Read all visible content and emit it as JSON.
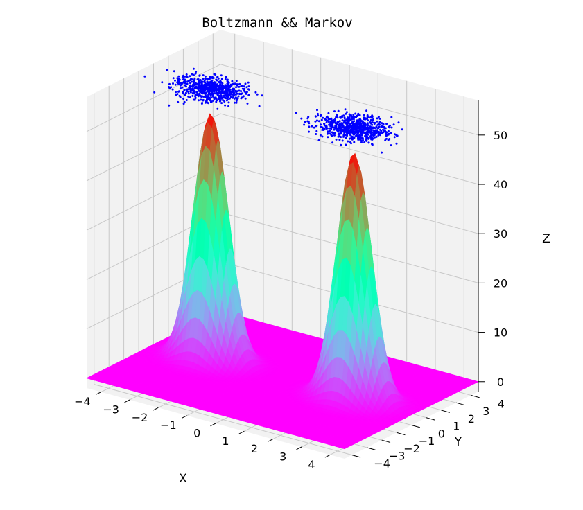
{
  "chart_data": {
    "type": "surface3d",
    "title": "Boltzmann && Markov",
    "xlabel": "X",
    "ylabel": "Y",
    "zlabel": "Z",
    "xlim": [
      -4.5,
      4.5
    ],
    "ylim": [
      -4.5,
      4.5
    ],
    "zlim": [
      -2,
      57
    ],
    "xticks": [
      -4,
      -3,
      -2,
      -1,
      0,
      1,
      2,
      3,
      4
    ],
    "yticks": [
      -4,
      -3,
      -2,
      -1,
      0,
      1,
      2,
      3,
      4
    ],
    "zticks": [
      0,
      10,
      20,
      30,
      40,
      50
    ],
    "grid": true,
    "colormap": "rainbow",
    "surface": {
      "peaks": [
        {
          "x": -2.5,
          "y": 0,
          "z": 50
        },
        {
          "x": 2.5,
          "y": 0,
          "z": 50
        }
      ],
      "sigma": 0.55
    },
    "scatter": {
      "color": "#0000ff",
      "z": 55,
      "clusters": [
        {
          "x": -2.5,
          "y": 0
        },
        {
          "x": 2.5,
          "y": 0
        }
      ]
    }
  }
}
